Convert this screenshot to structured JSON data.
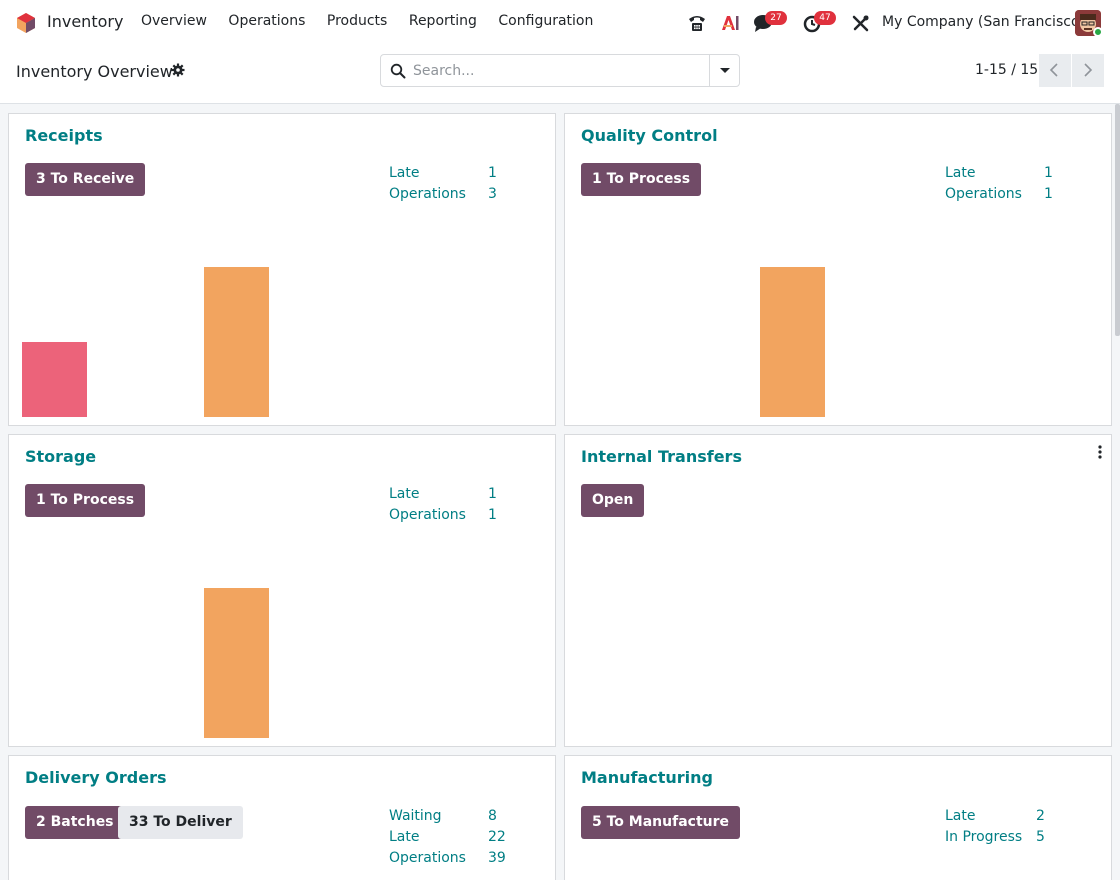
{
  "app": {
    "name": "Inventory"
  },
  "menu": [
    "Overview",
    "Operations",
    "Products",
    "Reporting",
    "Configuration"
  ],
  "systray": {
    "messages_count": "27",
    "activities_count": "47",
    "company": "My Company (San Francisco)"
  },
  "control_panel": {
    "title": "Inventory Overview",
    "search_placeholder": "Search...",
    "pager": "1-15 / 15"
  },
  "colors": {
    "brand": "#714b67",
    "teal": "#017e84",
    "late_bar": "#ec637a",
    "future_bar": "#f2a45f"
  },
  "cards": [
    {
      "title": "Receipts",
      "buttons": [
        {
          "label": "3 To Receive",
          "style": "primary"
        }
      ],
      "stats": [
        {
          "label": "Late",
          "value": "1"
        },
        {
          "label": "Operations",
          "value": "3"
        }
      ],
      "chart_data": {
        "type": "bar",
        "bars": [
          {
            "slot": 0,
            "value": 1,
            "color": "#ec637a"
          },
          {
            "slot": 2,
            "value": 2,
            "color": "#f2a45f"
          }
        ]
      }
    },
    {
      "title": "Quality Control",
      "buttons": [
        {
          "label": "1 To Process",
          "style": "primary"
        }
      ],
      "stats": [
        {
          "label": "Late",
          "value": "1"
        },
        {
          "label": "Operations",
          "value": "1"
        }
      ],
      "chart_data": {
        "type": "bar",
        "bars": [
          {
            "slot": 2,
            "value": 2,
            "color": "#f2a45f"
          }
        ]
      }
    },
    {
      "title": "Storage",
      "buttons": [
        {
          "label": "1 To Process",
          "style": "primary"
        }
      ],
      "stats": [
        {
          "label": "Late",
          "value": "1"
        },
        {
          "label": "Operations",
          "value": "1"
        }
      ],
      "chart_data": {
        "type": "bar",
        "bars": [
          {
            "slot": 2,
            "value": 2,
            "color": "#f2a45f"
          }
        ]
      }
    },
    {
      "title": "Internal Transfers",
      "buttons": [
        {
          "label": "Open",
          "style": "primary"
        }
      ],
      "stats": [],
      "chart_data": {
        "type": "bar",
        "bars": []
      }
    },
    {
      "title": "Delivery Orders",
      "buttons": [
        {
          "label": "2 Batches",
          "style": "primary"
        },
        {
          "label": "33 To Deliver",
          "style": "secondary"
        }
      ],
      "stats": [
        {
          "label": "Waiting",
          "value": "8"
        },
        {
          "label": "Late",
          "value": "22"
        },
        {
          "label": "Operations",
          "value": "39"
        }
      ],
      "chart_data": {
        "type": "bar",
        "bars": []
      }
    },
    {
      "title": "Manufacturing",
      "buttons": [
        {
          "label": "5 To Manufacture",
          "style": "primary"
        }
      ],
      "stats": [
        {
          "label": "Late",
          "value": "2"
        },
        {
          "label": "In Progress",
          "value": "5"
        }
      ],
      "chart_data": {
        "type": "bar",
        "bars": []
      }
    }
  ]
}
